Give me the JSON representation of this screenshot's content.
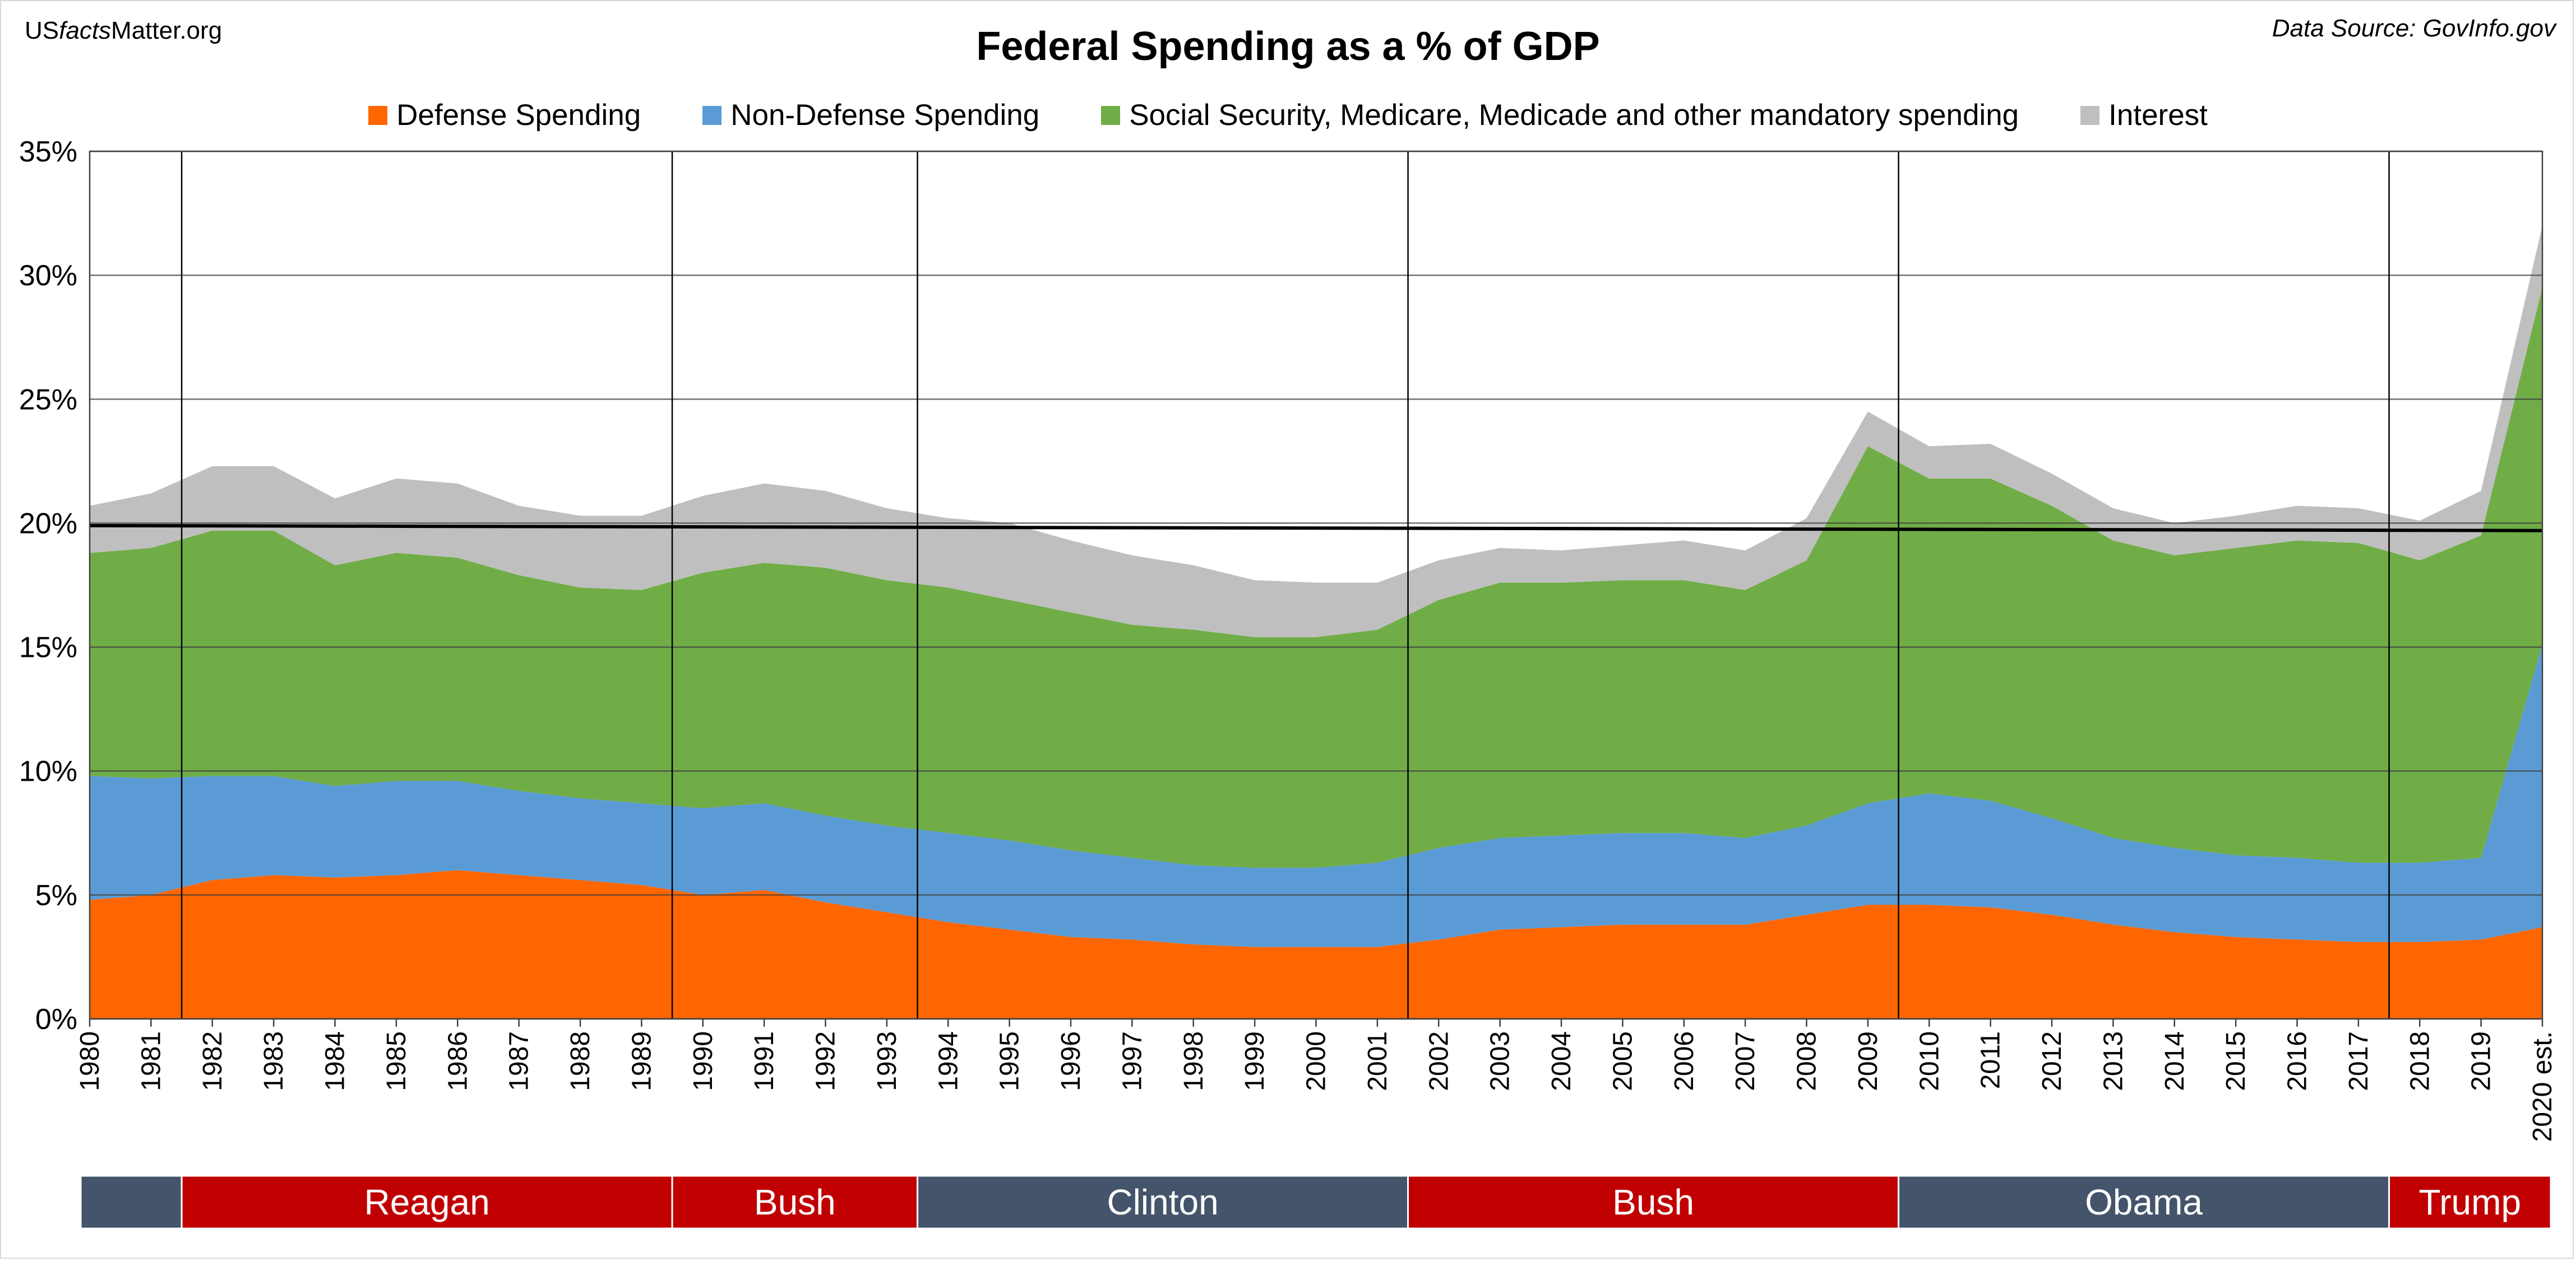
{
  "header": {
    "site_prefix": "US",
    "site_facts": "facts",
    "site_suffix": "Matter.org",
    "source": "Data Source: GovInfo.gov"
  },
  "chart_data": {
    "type": "area",
    "stacked": true,
    "title": "Federal Spending as a % of GDP",
    "xlabel": "",
    "ylabel": "",
    "ylim": [
      0,
      35
    ],
    "yticks": [
      0,
      5,
      10,
      15,
      20,
      25,
      30,
      35
    ],
    "ytick_labels": [
      "0%",
      "5%",
      "10%",
      "15%",
      "20%",
      "25%",
      "30%",
      "35%"
    ],
    "grid": true,
    "legend_position": "top-center",
    "categories": [
      "1980",
      "1981",
      "1982",
      "1983",
      "1984",
      "1985",
      "1986",
      "1987",
      "1988",
      "1989",
      "1990",
      "1991",
      "1992",
      "1993",
      "1994",
      "1995",
      "1996",
      "1997",
      "1998",
      "1999",
      "2000",
      "2001",
      "2002",
      "2003",
      "2004",
      "2005",
      "2006",
      "2007",
      "2008",
      "2009",
      "2010",
      "2011",
      "2012",
      "2013",
      "2014",
      "2015",
      "2016",
      "2017",
      "2018",
      "2019",
      "2020 est."
    ],
    "series": [
      {
        "name": "Defense Spending",
        "color": "#ff6600",
        "values": [
          4.8,
          5.0,
          5.6,
          5.8,
          5.7,
          5.8,
          6.0,
          5.8,
          5.6,
          5.4,
          5.0,
          5.2,
          4.7,
          4.3,
          3.9,
          3.6,
          3.3,
          3.2,
          3.0,
          2.9,
          2.9,
          2.9,
          3.2,
          3.6,
          3.7,
          3.8,
          3.8,
          3.8,
          4.2,
          4.6,
          4.6,
          4.5,
          4.2,
          3.8,
          3.5,
          3.3,
          3.2,
          3.1,
          3.1,
          3.2,
          3.7
        ]
      },
      {
        "name": "Non-Defense Spending",
        "color": "#5b9bd5",
        "values": [
          5.0,
          4.7,
          4.2,
          4.0,
          3.7,
          3.8,
          3.6,
          3.4,
          3.3,
          3.3,
          3.5,
          3.5,
          3.5,
          3.5,
          3.6,
          3.6,
          3.5,
          3.3,
          3.2,
          3.2,
          3.2,
          3.4,
          3.7,
          3.7,
          3.7,
          3.7,
          3.7,
          3.5,
          3.6,
          4.1,
          4.5,
          4.3,
          3.9,
          3.5,
          3.4,
          3.3,
          3.3,
          3.2,
          3.2,
          3.3,
          11.4
        ]
      },
      {
        "name": "Social Security, Medicare, Medicade and other mandatory spending",
        "color": "#70ad47",
        "values": [
          9.0,
          9.3,
          9.9,
          9.9,
          8.9,
          9.2,
          9.0,
          8.7,
          8.5,
          8.6,
          9.5,
          9.7,
          10.0,
          9.9,
          9.9,
          9.7,
          9.6,
          9.4,
          9.5,
          9.3,
          9.3,
          9.4,
          10.0,
          10.3,
          10.2,
          10.2,
          10.2,
          10.0,
          10.7,
          14.4,
          12.7,
          13.0,
          12.6,
          12.0,
          11.8,
          12.4,
          12.8,
          12.9,
          12.2,
          13.0,
          14.4
        ]
      },
      {
        "name": "Interest",
        "color": "#bfbfbf",
        "values": [
          1.9,
          2.2,
          2.6,
          2.6,
          2.7,
          3.0,
          3.0,
          2.8,
          2.9,
          3.0,
          3.1,
          3.2,
          3.1,
          2.9,
          2.8,
          3.1,
          2.9,
          2.8,
          2.6,
          2.3,
          2.2,
          1.9,
          1.6,
          1.4,
          1.3,
          1.4,
          1.6,
          1.6,
          1.7,
          1.4,
          1.3,
          1.4,
          1.3,
          1.3,
          1.3,
          1.3,
          1.4,
          1.4,
          1.6,
          1.8,
          2.5
        ]
      }
    ],
    "reference_line": {
      "label": "",
      "values_start": 19.9,
      "values_end": 19.7,
      "color": "#000000"
    },
    "administrations": [
      {
        "label": "",
        "start": "1980",
        "end": "1981",
        "color": "#44546a"
      },
      {
        "label": "Reagan",
        "start": "1982",
        "end": "1989",
        "color": "#c00000"
      },
      {
        "label": "Bush",
        "start": "1990",
        "end": "1993",
        "color": "#c00000"
      },
      {
        "label": "Clinton",
        "start": "1994",
        "end": "2001",
        "color": "#44546a"
      },
      {
        "label": "Bush",
        "start": "2002",
        "end": "2009",
        "color": "#c00000"
      },
      {
        "label": "Obama",
        "start": "2010",
        "end": "2017",
        "color": "#44546a"
      },
      {
        "label": "Trump",
        "start": "2018",
        "end": "2020 est.",
        "color": "#c00000"
      }
    ]
  }
}
